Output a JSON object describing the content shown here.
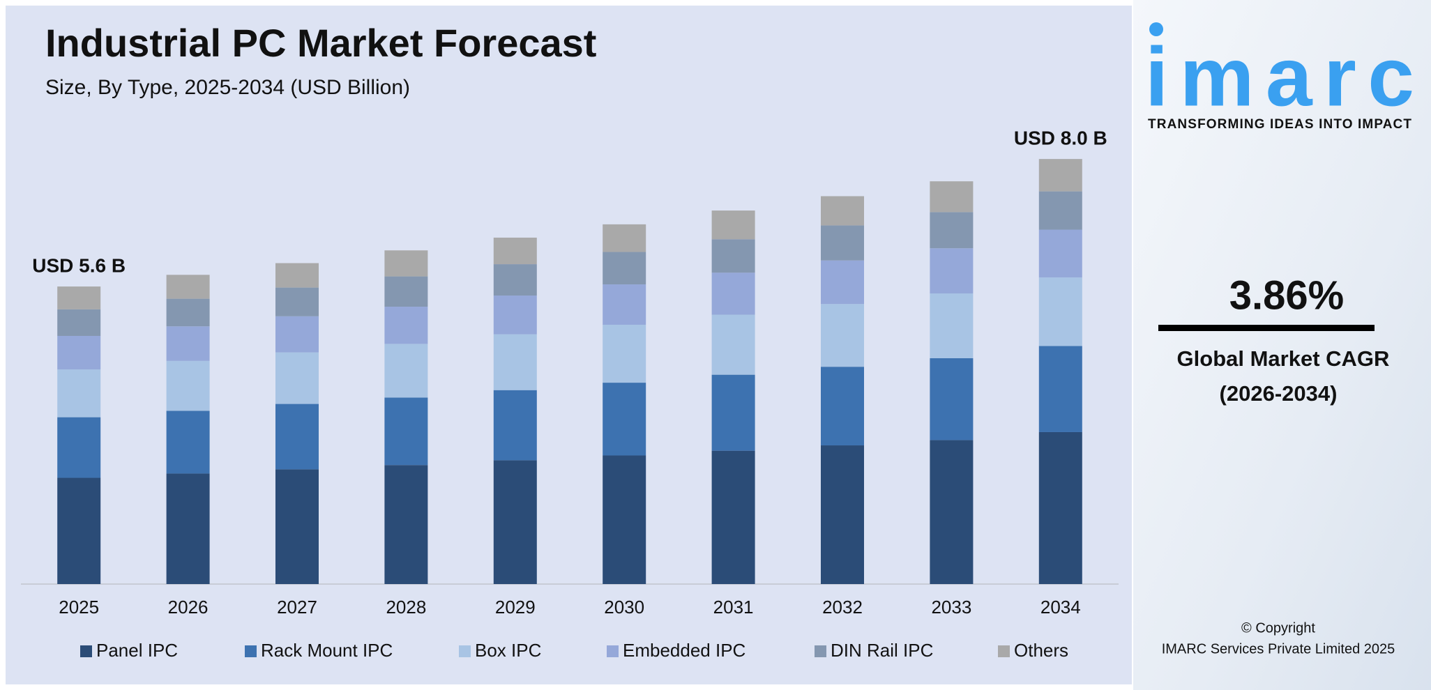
{
  "chart_data": {
    "type": "bar",
    "stacked": true,
    "title": "Industrial PC Market Forecast",
    "subtitle": "Size, By Type, 2025-2034 (USD Billion)",
    "categories": [
      "2025",
      "2026",
      "2027",
      "2028",
      "2029",
      "2030",
      "2031",
      "2032",
      "2033",
      "2034"
    ],
    "series": [
      {
        "name": "Panel IPC",
        "color": "#2b4c77",
        "values": [
          2.0,
          2.08,
          2.16,
          2.24,
          2.33,
          2.42,
          2.51,
          2.61,
          2.71,
          2.86
        ]
      },
      {
        "name": "Rack Mount IPC",
        "color": "#3d72b0",
        "values": [
          1.14,
          1.18,
          1.23,
          1.27,
          1.32,
          1.37,
          1.43,
          1.48,
          1.54,
          1.62
        ]
      },
      {
        "name": "Box IPC",
        "color": "#a8c4e4",
        "values": [
          0.9,
          0.94,
          0.97,
          1.01,
          1.05,
          1.09,
          1.13,
          1.18,
          1.22,
          1.29
        ]
      },
      {
        "name": "Embedded IPC",
        "color": "#95a8d9",
        "values": [
          0.63,
          0.65,
          0.68,
          0.7,
          0.73,
          0.76,
          0.79,
          0.82,
          0.85,
          0.9
        ]
      },
      {
        "name": "DIN Rail IPC",
        "color": "#8497b0",
        "values": [
          0.5,
          0.52,
          0.54,
          0.57,
          0.59,
          0.61,
          0.63,
          0.66,
          0.68,
          0.72
        ]
      },
      {
        "name": "Others",
        "color": "#a9a9a9",
        "values": [
          0.43,
          0.45,
          0.46,
          0.49,
          0.5,
          0.52,
          0.54,
          0.55,
          0.58,
          0.61
        ]
      }
    ],
    "total_labels": [
      {
        "category": "2025",
        "value": 5.6,
        "label": "USD 5.6 B"
      },
      {
        "category": "2034",
        "value": 8.0,
        "label": "USD 8.0 B"
      }
    ],
    "ylim": [
      0,
      8.5
    ]
  },
  "sidebar": {
    "logo": "imarc",
    "tagline": "TRANSFORMING IDEAS INTO IMPACT",
    "cagr": "3.86%",
    "cagr_label": "Global Market CAGR",
    "cagr_period": "(2026-2034)",
    "copyright": "© Copyright",
    "company": "IMARC Services Private Limited 2025"
  }
}
